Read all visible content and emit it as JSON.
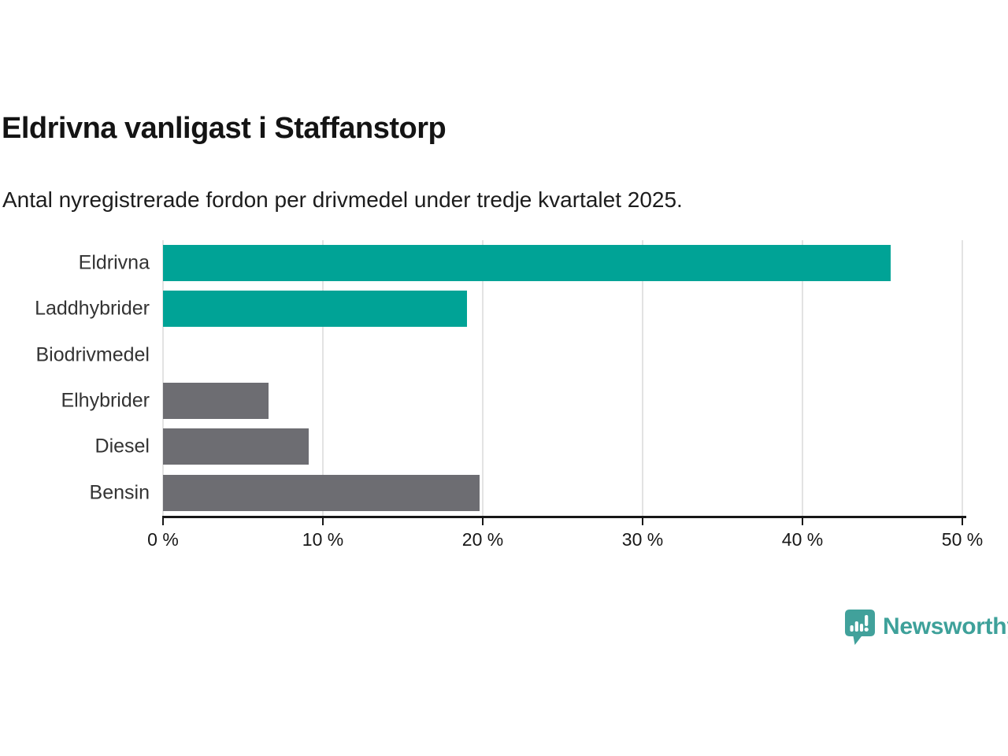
{
  "chart_data": {
    "type": "bar",
    "orientation": "horizontal",
    "title": "Eldrivna vanligast i Staffanstorp",
    "subtitle": "Antal nyregistrerade fordon per drivmedel under tredje kvartalet 2025.",
    "categories": [
      "Eldrivna",
      "Laddhybrider",
      "Biodrivmedel",
      "Elhybrider",
      "Diesel",
      "Bensin"
    ],
    "values": [
      45.5,
      19.0,
      0,
      6.6,
      9.1,
      19.8
    ],
    "unit": "%",
    "xlim": [
      0,
      50
    ],
    "x_ticks": [
      0,
      10,
      20,
      30,
      40,
      50
    ],
    "x_tick_labels": [
      "0 %",
      "10 %",
      "20 %",
      "30 %",
      "40 %",
      "50 %"
    ],
    "bar_colors": [
      "#00a396",
      "#00a396",
      null,
      "#6d6d72",
      "#6d6d72",
      "#6d6d72"
    ],
    "grid": true,
    "legend": false,
    "colors": {
      "highlight": "#00a396",
      "neutral": "#6d6d72",
      "gridline": "#e3e3e3",
      "axis": "#171717",
      "title_text": "#141414",
      "label_text": "#333333"
    }
  },
  "branding": {
    "logo_text": "Newsworthy",
    "logo_icon": "newsworthy-bar-chart-bubble-icon",
    "logo_color": "#3ea19a"
  }
}
